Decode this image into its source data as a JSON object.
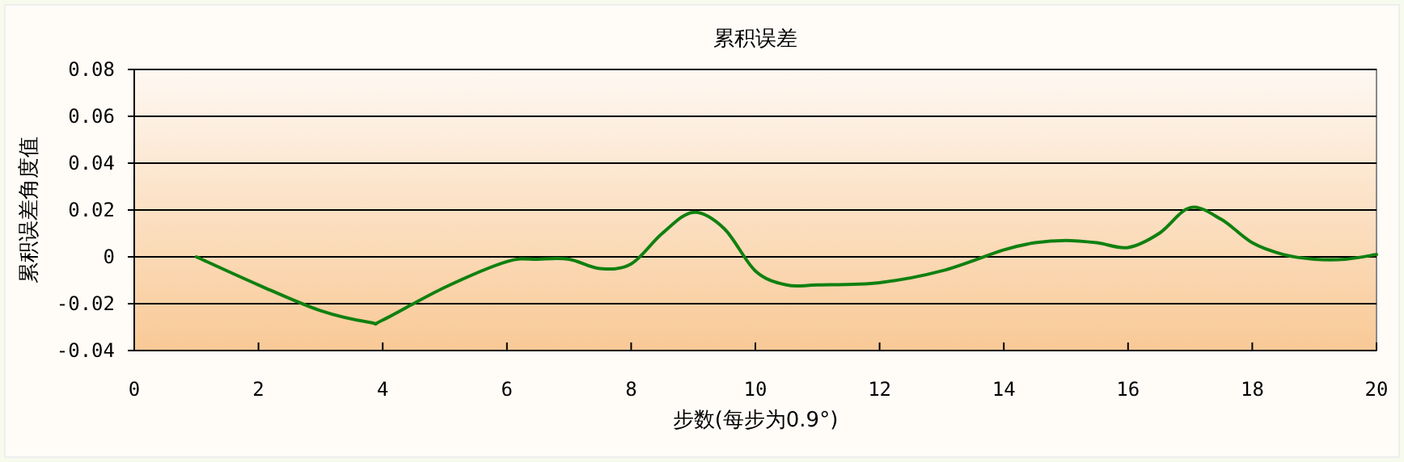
{
  "chart_data": {
    "type": "line",
    "title": "累积误差",
    "xlabel": "步数(每步为0.9°)",
    "ylabel": "累积误差角度值",
    "xlim": [
      0,
      20
    ],
    "xticks": [
      0,
      2,
      4,
      6,
      8,
      10,
      12,
      14,
      16,
      18,
      20
    ],
    "ylim": [
      -0.04,
      0.08
    ],
    "yticks": [
      -0.04,
      -0.02,
      0,
      0.02,
      0.04,
      0.06,
      0.08
    ],
    "grid": "y",
    "marker": "none",
    "line_style": "solid",
    "series": [
      {
        "color": "#108010",
        "x": [
          1,
          2,
          3,
          3.8,
          4,
          5,
          6,
          6.5,
          7,
          7.5,
          8,
          8.5,
          9,
          9.5,
          10,
          10.5,
          11,
          12,
          13,
          14,
          14.5,
          15,
          15.5,
          16,
          16.5,
          17,
          17.5,
          18,
          18.5,
          19,
          19.5,
          20
        ],
        "values": [
          0,
          -0.012,
          -0.023,
          -0.028,
          -0.027,
          -0.013,
          -0.002,
          -0.001,
          -0.001,
          -0.005,
          -0.003,
          0.01,
          0.019,
          0.012,
          -0.006,
          -0.012,
          -0.012,
          -0.011,
          -0.006,
          0.003,
          0.006,
          0.007,
          0.006,
          0.004,
          0.01,
          0.021,
          0.016,
          0.006,
          0.001,
          -0.001,
          -0.001,
          0.001
        ]
      }
    ]
  }
}
